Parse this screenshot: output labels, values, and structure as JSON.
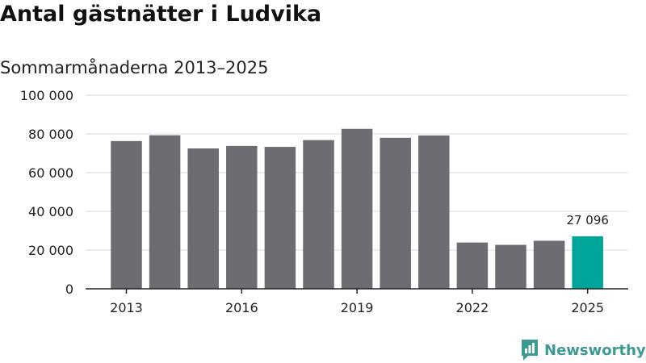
{
  "header": {
    "title": "Antal gästnätter i Ludvika",
    "subtitle": "Sommarmånaderna 2013–2025"
  },
  "brand": {
    "name": "Newsworthy",
    "icon": "newsworthy-logo-icon",
    "color": "#3b9a93"
  },
  "colors": {
    "bar": "#6d6c72",
    "highlight": "#00a59a",
    "grid": "#dddddd",
    "axis": "#222222"
  },
  "chart_data": {
    "type": "bar",
    "categories": [
      "2013",
      "2014",
      "2015",
      "2016",
      "2017",
      "2018",
      "2019",
      "2020",
      "2021",
      "2022",
      "2023",
      "2024",
      "2025"
    ],
    "values": [
      76300,
      79300,
      72500,
      73800,
      73300,
      76800,
      82600,
      78000,
      79200,
      23900,
      22700,
      24800,
      27096
    ],
    "highlight_index": 12,
    "x_tick_labels": [
      "2013",
      "2016",
      "2019",
      "2022",
      "2025"
    ],
    "y_ticks": [
      0,
      20000,
      40000,
      60000,
      80000,
      100000
    ],
    "y_tick_labels": [
      "0",
      "20 000",
      "40 000",
      "60 000",
      "80 000",
      "100 000"
    ],
    "ylim": [
      0,
      100000
    ],
    "data_labels": [
      {
        "index": 12,
        "text": "27 096"
      }
    ],
    "grid": true
  }
}
